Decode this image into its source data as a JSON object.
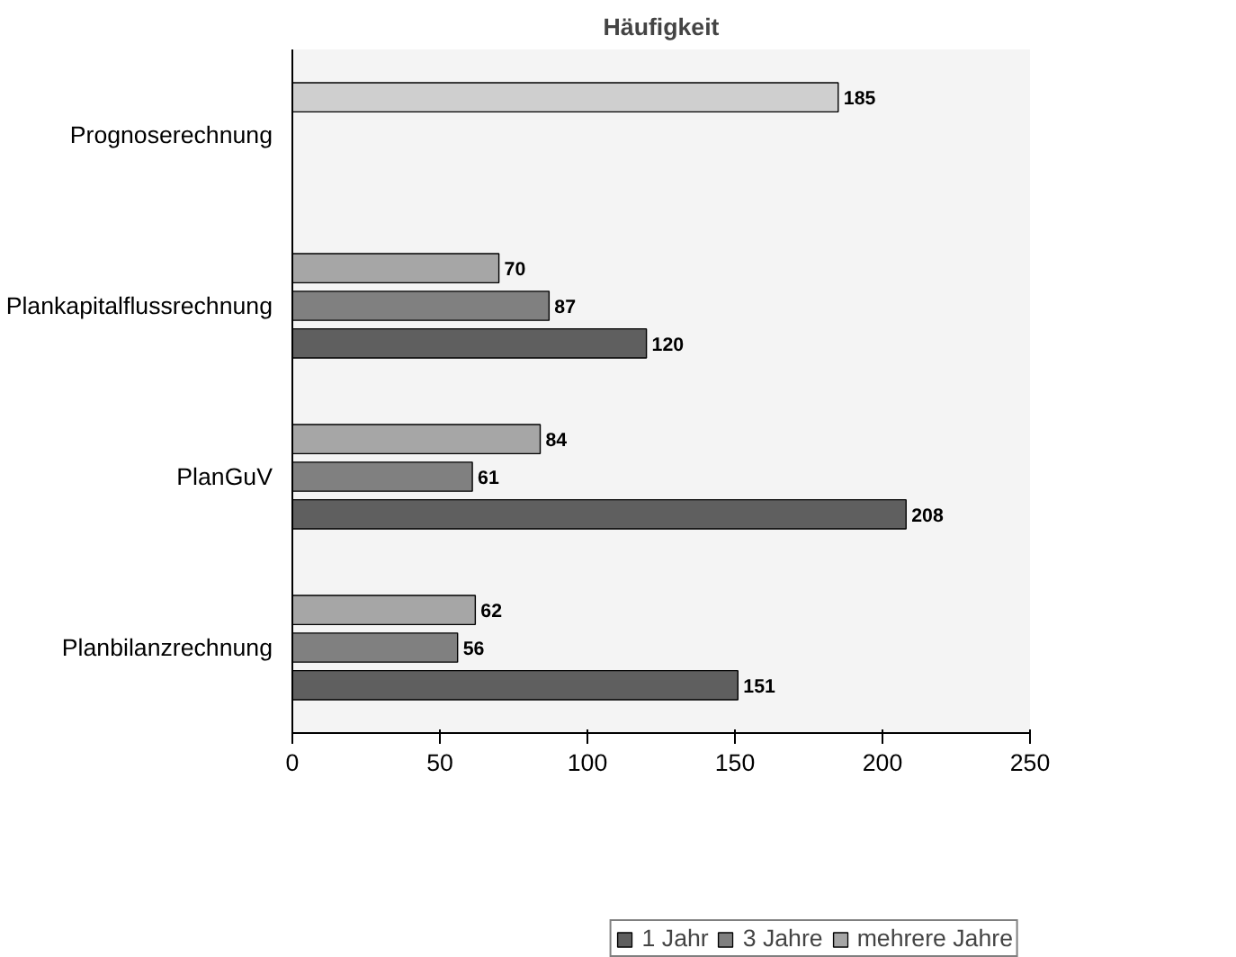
{
  "chart_data": {
    "type": "bar",
    "orientation": "horizontal",
    "title": "Häufigkeit",
    "categories": [
      "Prognoserechnung",
      "Plankapitalflussrechnung",
      "PlanGuV",
      "Planbilanzrechnung"
    ],
    "series": [
      {
        "name": "1 Jahr",
        "color": "#5f5f5f",
        "values": [
          null,
          120,
          208,
          151
        ]
      },
      {
        "name": "3 Jahre",
        "color": "#808080",
        "values": [
          null,
          87,
          61,
          56
        ]
      },
      {
        "name": "mehrere Jahre",
        "color": "#a6a6a6",
        "colors": [
          "#cfcfcf",
          "#a6a6a6",
          "#a6a6a6",
          "#a6a6a6"
        ],
        "values": [
          185,
          70,
          84,
          62
        ]
      }
    ],
    "xlim": [
      0,
      250
    ],
    "xticks": [
      0,
      50,
      100,
      150,
      200,
      250
    ],
    "data_labels": true,
    "grid": false,
    "legend": "bottom"
  }
}
